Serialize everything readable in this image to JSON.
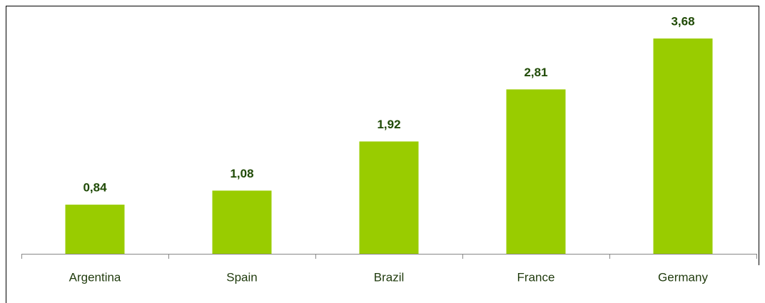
{
  "chart_data": {
    "type": "bar",
    "categories": [
      "Argentina",
      "Spain",
      "Brazil",
      "France",
      "Germany"
    ],
    "values": [
      0.84,
      1.08,
      1.92,
      2.81,
      3.68
    ],
    "value_labels": [
      "0,84",
      "1,08",
      "1,92",
      "2,81",
      "3,68"
    ],
    "color": "#99cc00"
  }
}
